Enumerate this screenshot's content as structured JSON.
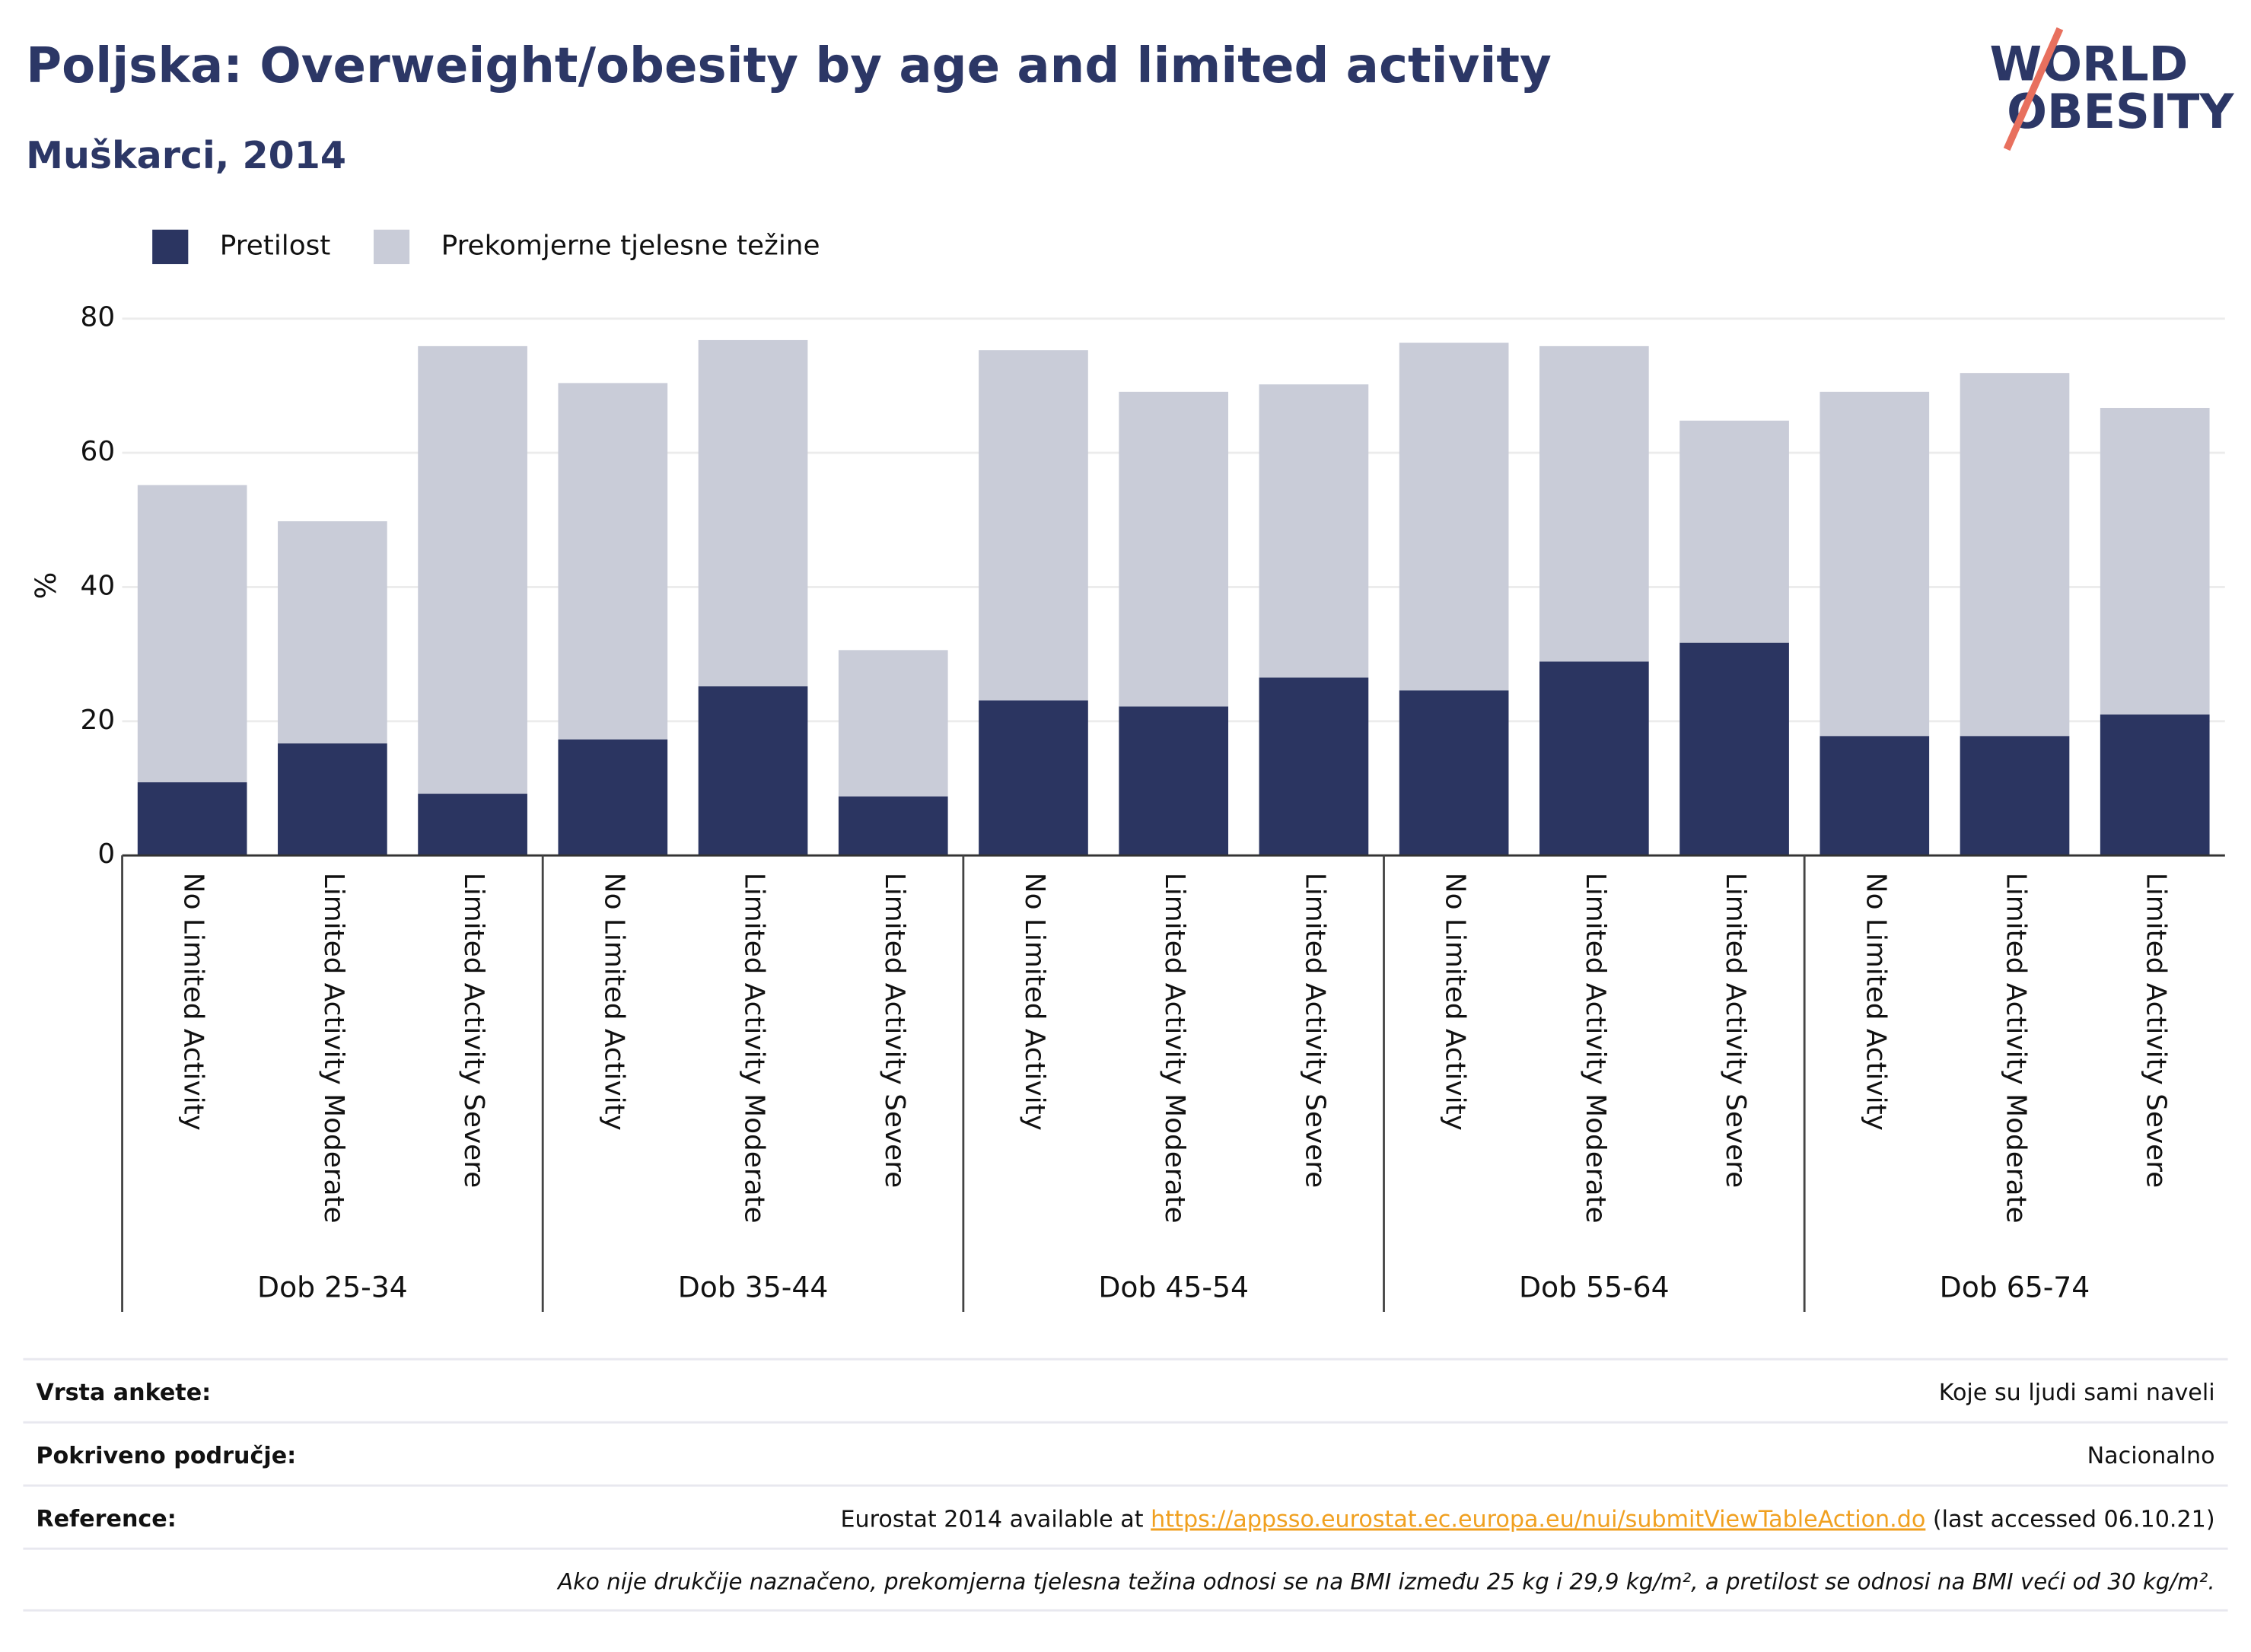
{
  "chart_data": {
    "type": "bar",
    "stacked": true,
    "title": "Poljska: Overweight/obesity by age and limited activity",
    "subtitle": "Muškarci, 2014",
    "logo": [
      "WORLD",
      "OBESITY"
    ],
    "y_label": "%",
    "groups": [
      "Dob 25-34",
      "Dob 35-44",
      "Dob 45-54",
      "Dob 55-64",
      "Dob 65-74"
    ],
    "categories": [
      "No Limited Activity",
      "Limited Activity Moderate",
      "Limited Activity Severe",
      "No Limited Activity",
      "Limited Activity Moderate",
      "Limited Activity Severe",
      "No Limited Activity",
      "Limited Activity Moderate",
      "Limited Activity Severe",
      "No Limited Activity",
      "Limited Activity Moderate",
      "Limited Activity Severe",
      "No Limited Activity",
      "Limited Activity Moderate",
      "Limited Activity Severe"
    ],
    "series": [
      {
        "name": "Pretilost",
        "color": "#2b3561",
        "values": [
          10.9,
          16.7,
          9.2,
          17.3,
          25.2,
          8.8,
          23.1,
          22.2,
          26.5,
          24.6,
          28.9,
          31.7,
          17.8,
          17.8,
          21.0
        ]
      },
      {
        "name": "Prekomjerne tjelesne težine",
        "color": "#c9ccd8",
        "values": [
          44.3,
          33.1,
          66.7,
          53.1,
          51.6,
          21.8,
          52.2,
          46.9,
          43.7,
          51.8,
          47.0,
          33.1,
          51.3,
          54.1,
          45.7
        ]
      }
    ],
    "ylim": [
      0,
      80
    ],
    "yticks": [
      0,
      20,
      40,
      60,
      80
    ],
    "grid": true,
    "legend": "top-left"
  },
  "footer": {
    "rows": [
      [
        "Vrsta ankete:",
        "Koje su ljudi sami naveli"
      ],
      [
        "Pokriveno područje:",
        "Nacionalno"
      ]
    ],
    "reference": {
      "label": "Reference:",
      "before": "Eurostat 2014 available at ",
      "link": "https://appsso.eurostat.ec.europa.eu/nui/submitViewTableAction.do",
      "after": " (last accessed 06.10.21)"
    },
    "note": "Ako nije drukčije naznačeno, prekomjerna tjelesna težina odnosi se na BMI između 25 kg i 29,9 kg/m², a pretilost se odnosi na BMI veći od 30 kg/m²."
  }
}
